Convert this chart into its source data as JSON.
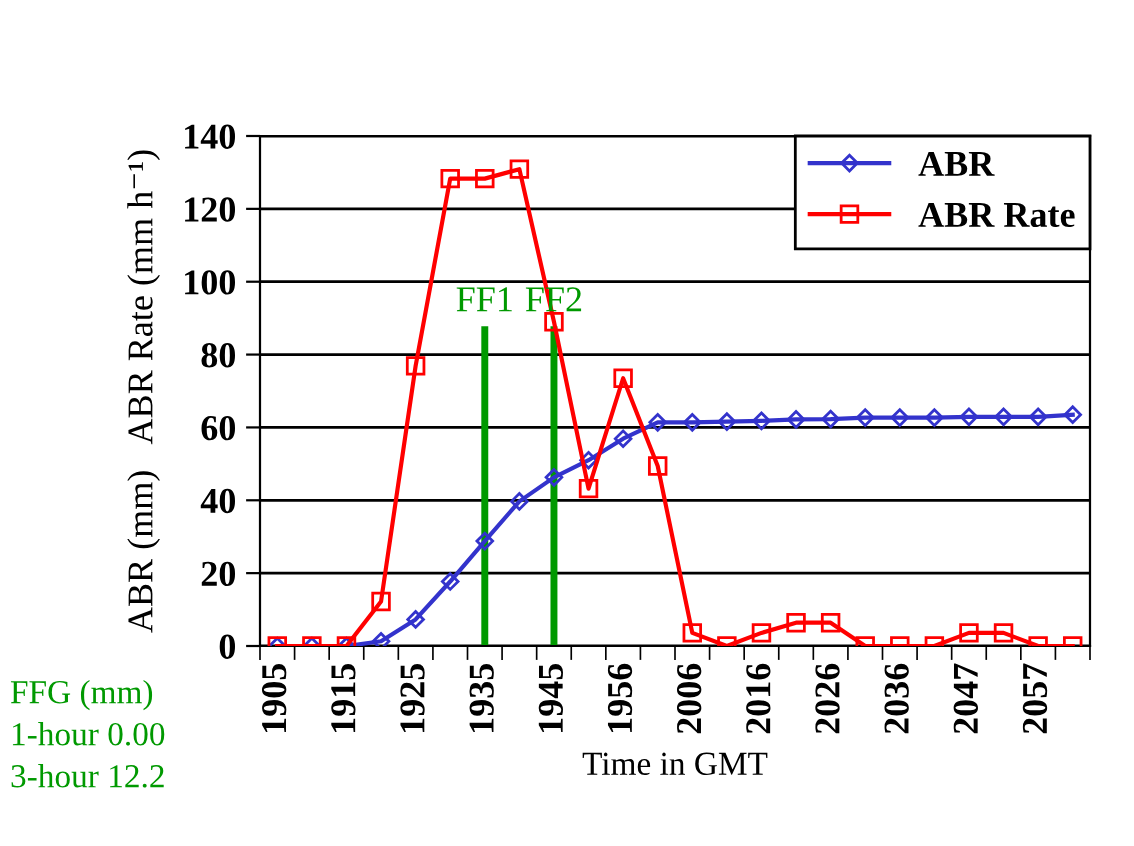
{
  "chart_data": {
    "type": "line",
    "xlabel": "Time in GMT",
    "ylabel": "ABR (mm)   ABR Rate (mm h⁻¹)",
    "categories": [
      "1905",
      null,
      "1915",
      null,
      "1925",
      null,
      "1935",
      null,
      "1945",
      null,
      "1956",
      null,
      "2006",
      null,
      "2016",
      null,
      "2026",
      null,
      "2036",
      null,
      "2047",
      null,
      "2057",
      null
    ],
    "series": [
      {
        "name": "ABR",
        "color": "#3333cc",
        "marker": "diamond",
        "values": [
          0,
          0,
          0,
          1.3,
          7.3,
          17.7,
          28.8,
          39.7,
          46.3,
          51,
          56.9,
          61.4,
          61.4,
          61.6,
          61.8,
          62.2,
          62.3,
          62.7,
          62.7,
          62.7,
          62.9,
          62.9,
          62.9,
          63.5
        ]
      },
      {
        "name": "ABR Rate",
        "color": "#ff0000",
        "marker": "square",
        "values": [
          0,
          0,
          0,
          12.2,
          76.9,
          128.3,
          128.3,
          130.9,
          89,
          43.2,
          73.5,
          49.4,
          3.6,
          0,
          3.6,
          6.4,
          6.4,
          0,
          0,
          0,
          3.6,
          3.6,
          0,
          0
        ]
      }
    ],
    "ylim": [
      0,
      140
    ],
    "yticks": [
      0,
      20,
      40,
      60,
      80,
      100,
      120,
      140
    ],
    "grid": "y",
    "legend": "top right",
    "ref_lines": [
      {
        "axis": "x",
        "value": "1935",
        "label": "FF1",
        "color": "#009900"
      },
      {
        "axis": "x",
        "value": "1945",
        "label": "FF2",
        "color": "#009900"
      }
    ],
    "annotations": [
      "FFG (mm)",
      "1-hour 0.00",
      "3-hour 12.2"
    ]
  }
}
